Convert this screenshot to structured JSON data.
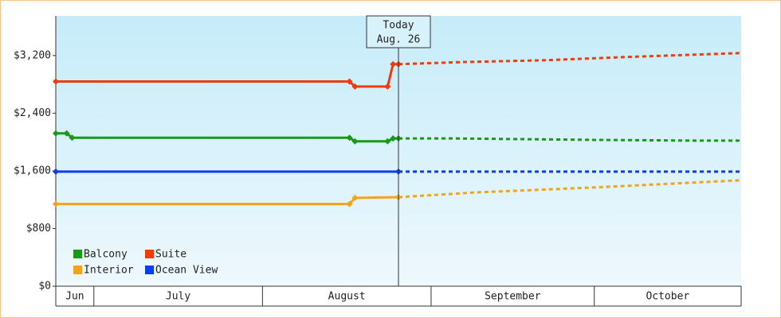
{
  "chart_data": {
    "type": "line",
    "xlim": [
      175,
      301
    ],
    "ylim": [
      0,
      3750
    ],
    "yticks": [
      {
        "value": 0,
        "label": "$0"
      },
      {
        "value": 800,
        "label": "$800"
      },
      {
        "value": 1600,
        "label": "$1,600"
      },
      {
        "value": 2400,
        "label": "$2,400"
      },
      {
        "value": 3200,
        "label": "$3,200"
      }
    ],
    "x_bands": [
      {
        "label": "Jun",
        "start": 175,
        "end": 182
      },
      {
        "label": "July",
        "start": 182,
        "end": 213
      },
      {
        "label": "August",
        "start": 213,
        "end": 244
      },
      {
        "label": "September",
        "start": 244,
        "end": 274
      },
      {
        "label": "October",
        "start": 274,
        "end": 301
      }
    ],
    "annotation": {
      "lines": [
        "Today",
        "Aug. 26"
      ],
      "x": 238
    },
    "series": [
      {
        "name": "Balcony",
        "color": "#189a18",
        "x": [
          175,
          177,
          178,
          229,
          230,
          236,
          237,
          238
        ],
        "values": [
          2120,
          2120,
          2060,
          2060,
          2010,
          2010,
          2050,
          2050
        ],
        "forecast_x": [
          238,
          248,
          274,
          292,
          301
        ],
        "forecast": [
          2050,
          2050,
          2030,
          2020,
          2020
        ]
      },
      {
        "name": "Suite",
        "color": "#f03c0c",
        "x": [
          175,
          229,
          230,
          236,
          237,
          238
        ],
        "values": [
          2840,
          2840,
          2770,
          2770,
          3080,
          3080
        ],
        "forecast_x": [
          238,
          250,
          265,
          280,
          301
        ],
        "forecast": [
          3080,
          3110,
          3135,
          3180,
          3235
        ]
      },
      {
        "name": "Interior",
        "color": "#f0a418",
        "x": [
          175,
          229,
          230,
          238
        ],
        "values": [
          1140,
          1140,
          1225,
          1235
        ],
        "forecast_x": [
          238,
          252,
          274,
          301
        ],
        "forecast": [
          1235,
          1300,
          1370,
          1470
        ]
      },
      {
        "name": "Ocean View",
        "color": "#0c3cf0",
        "x": [
          175,
          238
        ],
        "values": [
          1590,
          1590
        ],
        "forecast_x": [
          238,
          301
        ],
        "forecast": [
          1590,
          1590
        ]
      }
    ]
  }
}
